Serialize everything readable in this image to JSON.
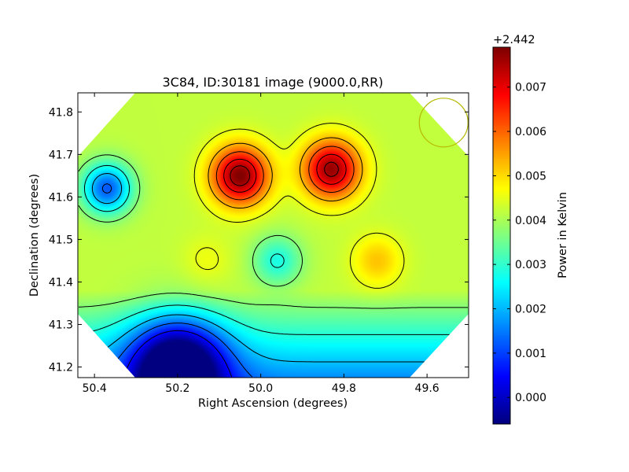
{
  "chart_data": {
    "type": "heatmap",
    "title": "3C84, ID:30181 image (9000.0,RR)",
    "xlabel": "Right Ascension (degrees)",
    "ylabel": "Declination (degrees)",
    "xlim": [
      50.44,
      49.5
    ],
    "ylim": [
      41.175,
      41.845
    ],
    "x_ticks": [
      50.4,
      50.2,
      50.0,
      49.8,
      49.6
    ],
    "x_tick_labels": [
      "50.4",
      "50.2",
      "50.0",
      "49.8",
      "49.6"
    ],
    "y_ticks": [
      41.2,
      41.3,
      41.4,
      41.5,
      41.6,
      41.7,
      41.8
    ],
    "y_tick_labels": [
      "41.2",
      "41.3",
      "41.4",
      "41.5",
      "41.6",
      "41.7",
      "41.8"
    ],
    "colormap": "jet",
    "colorbar": {
      "label": "Power in Kelvin",
      "offset_label": "+2.442",
      "range": [
        -0.0006,
        0.0079
      ],
      "ticks": [
        0.0,
        0.001,
        0.002,
        0.003,
        0.004,
        0.005,
        0.006,
        0.007
      ],
      "tick_labels": [
        "0.000",
        "0.001",
        "0.002",
        "0.003",
        "0.004",
        "0.005",
        "0.006",
        "0.007"
      ]
    },
    "grid": false,
    "features": [
      {
        "kind": "peak",
        "ra": 50.05,
        "dec": 41.65,
        "value": 0.0079
      },
      {
        "kind": "peak",
        "ra": 49.83,
        "dec": 41.665,
        "value": 0.0077
      },
      {
        "kind": "local-high",
        "ra": 50.13,
        "dec": 41.45,
        "value": 0.0046
      },
      {
        "kind": "local-high",
        "ra": 49.72,
        "dec": 41.45,
        "value": 0.0052
      },
      {
        "kind": "local-low",
        "ra": 50.37,
        "dec": 41.62,
        "value": 0.0012
      },
      {
        "kind": "local-low",
        "ra": 49.96,
        "dec": 41.45,
        "value": 0.0028
      },
      {
        "kind": "local-low",
        "ra": 50.2,
        "dec": 41.2,
        "value": -0.0002
      }
    ],
    "beam_circle": {
      "ra": 49.56,
      "dec": 41.775,
      "color": "#b5b800"
    }
  }
}
